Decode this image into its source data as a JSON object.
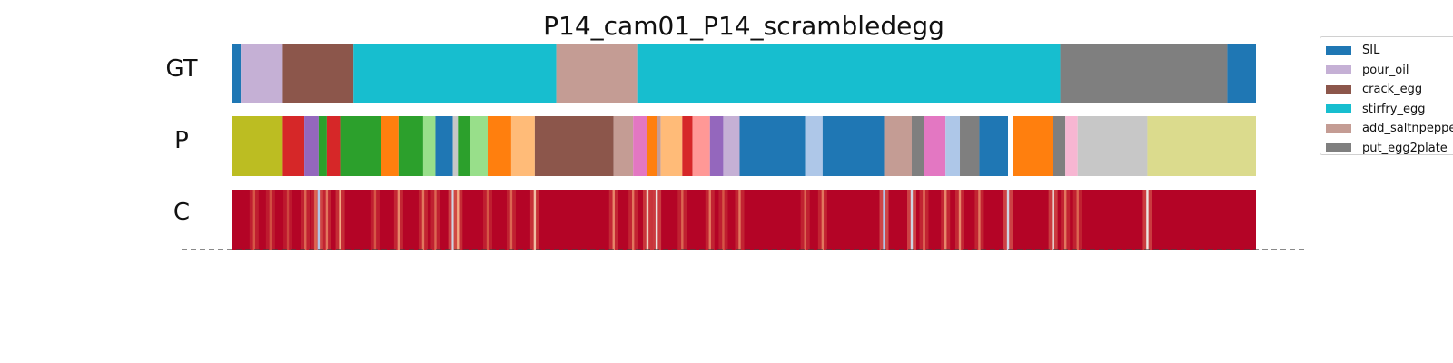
{
  "chart_data": {
    "type": "heatmap",
    "title": "P14_cam01_P14_scrambledegg",
    "rows": [
      {
        "label": "GT",
        "kind": "segments",
        "segments": [
          {
            "start": 0.0,
            "end": 0.009,
            "color": "#1f77b4"
          },
          {
            "start": 0.009,
            "end": 0.05,
            "color": "#c5b0d5"
          },
          {
            "start": 0.05,
            "end": 0.119,
            "color": "#8c564b"
          },
          {
            "start": 0.119,
            "end": 0.317,
            "color": "#17becf"
          },
          {
            "start": 0.317,
            "end": 0.396,
            "color": "#c49c94"
          },
          {
            "start": 0.396,
            "end": 0.809,
            "color": "#17becf"
          },
          {
            "start": 0.809,
            "end": 0.972,
            "color": "#7f7f7f"
          },
          {
            "start": 0.972,
            "end": 1.0,
            "color": "#1f77b4"
          }
        ]
      },
      {
        "label": "P",
        "kind": "segments",
        "segments": [
          {
            "start": 0.0,
            "end": 0.05,
            "color": "#bcbd22"
          },
          {
            "start": 0.05,
            "end": 0.071,
            "color": "#d62728"
          },
          {
            "start": 0.071,
            "end": 0.085,
            "color": "#9467bd"
          },
          {
            "start": 0.085,
            "end": 0.093,
            "color": "#2ca02c"
          },
          {
            "start": 0.093,
            "end": 0.106,
            "color": "#d62728"
          },
          {
            "start": 0.106,
            "end": 0.146,
            "color": "#2ca02c"
          },
          {
            "start": 0.146,
            "end": 0.163,
            "color": "#ff7f0e"
          },
          {
            "start": 0.163,
            "end": 0.187,
            "color": "#2ca02c"
          },
          {
            "start": 0.187,
            "end": 0.199,
            "color": "#98df8a"
          },
          {
            "start": 0.199,
            "end": 0.216,
            "color": "#1f77b4"
          },
          {
            "start": 0.216,
            "end": 0.221,
            "color": "#c7c7c7"
          },
          {
            "start": 0.221,
            "end": 0.233,
            "color": "#2ca02c"
          },
          {
            "start": 0.233,
            "end": 0.25,
            "color": "#98df8a"
          },
          {
            "start": 0.25,
            "end": 0.273,
            "color": "#ff7f0e"
          },
          {
            "start": 0.273,
            "end": 0.296,
            "color": "#ffbb78"
          },
          {
            "start": 0.296,
            "end": 0.373,
            "color": "#8c564b"
          },
          {
            "start": 0.373,
            "end": 0.392,
            "color": "#c49c94"
          },
          {
            "start": 0.392,
            "end": 0.406,
            "color": "#e377c2"
          },
          {
            "start": 0.406,
            "end": 0.415,
            "color": "#ff7f0e"
          },
          {
            "start": 0.415,
            "end": 0.419,
            "color": "#c49c94"
          },
          {
            "start": 0.419,
            "end": 0.44,
            "color": "#ffbb78"
          },
          {
            "start": 0.44,
            "end": 0.45,
            "color": "#d62728"
          },
          {
            "start": 0.45,
            "end": 0.467,
            "color": "#ff9896"
          },
          {
            "start": 0.467,
            "end": 0.48,
            "color": "#9467bd"
          },
          {
            "start": 0.48,
            "end": 0.496,
            "color": "#c5b0d5"
          },
          {
            "start": 0.496,
            "end": 0.56,
            "color": "#1f77b4"
          },
          {
            "start": 0.56,
            "end": 0.577,
            "color": "#aec7e8"
          },
          {
            "start": 0.577,
            "end": 0.637,
            "color": "#1f77b4"
          },
          {
            "start": 0.637,
            "end": 0.664,
            "color": "#c49c94"
          },
          {
            "start": 0.664,
            "end": 0.676,
            "color": "#7f7f7f"
          },
          {
            "start": 0.676,
            "end": 0.697,
            "color": "#e377c2"
          },
          {
            "start": 0.697,
            "end": 0.711,
            "color": "#aec7e8"
          },
          {
            "start": 0.711,
            "end": 0.73,
            "color": "#7f7f7f"
          },
          {
            "start": 0.73,
            "end": 0.758,
            "color": "#1f77b4"
          },
          {
            "start": 0.758,
            "end": 0.763,
            "color": "#ffffff"
          },
          {
            "start": 0.763,
            "end": 0.802,
            "color": "#ff7f0e"
          },
          {
            "start": 0.802,
            "end": 0.814,
            "color": "#7f7f7f"
          },
          {
            "start": 0.814,
            "end": 0.826,
            "color": "#f7b6d2"
          },
          {
            "start": 0.826,
            "end": 0.894,
            "color": "#c7c7c7"
          },
          {
            "start": 0.894,
            "end": 1.0,
            "color": "#dbdb8d"
          }
        ]
      },
      {
        "label": "C",
        "kind": "confidence",
        "base_color": "#b40426",
        "dips": [
          {
            "at": 0.022,
            "level": 0.45
          },
          {
            "at": 0.038,
            "level": 0.4
          },
          {
            "at": 0.055,
            "level": 0.35
          },
          {
            "at": 0.072,
            "level": 0.5
          },
          {
            "at": 0.082,
            "level": 0.4
          },
          {
            "at": 0.085,
            "level": 0.95
          },
          {
            "at": 0.093,
            "level": 0.55
          },
          {
            "at": 0.106,
            "level": 0.7
          },
          {
            "at": 0.14,
            "level": 0.45
          },
          {
            "at": 0.163,
            "level": 0.6
          },
          {
            "at": 0.187,
            "level": 0.55
          },
          {
            "at": 0.199,
            "level": 0.5
          },
          {
            "at": 0.216,
            "level": 0.9
          },
          {
            "at": 0.221,
            "level": 0.7
          },
          {
            "at": 0.25,
            "level": 0.45
          },
          {
            "at": 0.273,
            "level": 0.5
          },
          {
            "at": 0.296,
            "level": 0.75
          },
          {
            "at": 0.373,
            "level": 0.6
          },
          {
            "at": 0.392,
            "level": 0.55
          },
          {
            "at": 0.406,
            "level": 0.8
          },
          {
            "at": 0.415,
            "level": 0.85
          },
          {
            "at": 0.44,
            "level": 0.5
          },
          {
            "at": 0.467,
            "level": 0.55
          },
          {
            "at": 0.48,
            "level": 0.45
          },
          {
            "at": 0.496,
            "level": 0.55
          },
          {
            "at": 0.56,
            "level": 0.5
          },
          {
            "at": 0.577,
            "level": 0.55
          },
          {
            "at": 0.637,
            "level": 0.95
          },
          {
            "at": 0.664,
            "level": 0.9
          },
          {
            "at": 0.676,
            "level": 0.55
          },
          {
            "at": 0.697,
            "level": 0.6
          },
          {
            "at": 0.711,
            "level": 0.6
          },
          {
            "at": 0.73,
            "level": 0.55
          },
          {
            "at": 0.758,
            "level": 0.9
          },
          {
            "at": 0.802,
            "level": 0.85
          },
          {
            "at": 0.814,
            "level": 0.55
          },
          {
            "at": 0.826,
            "level": 0.5
          },
          {
            "at": 0.894,
            "level": 0.85
          }
        ]
      }
    ],
    "legend": {
      "placement": "top-right, outside",
      "entries": [
        {
          "label": "SIL",
          "color": "#1f77b4"
        },
        {
          "label": "pour_oil",
          "color": "#c5b0d5"
        },
        {
          "label": "crack_egg",
          "color": "#8c564b"
        },
        {
          "label": "stirfry_egg",
          "color": "#17becf"
        },
        {
          "label": "add_saltnpepper",
          "color": "#c49c94"
        },
        {
          "label": "put_egg2plate",
          "color": "#7f7f7f"
        }
      ]
    }
  }
}
